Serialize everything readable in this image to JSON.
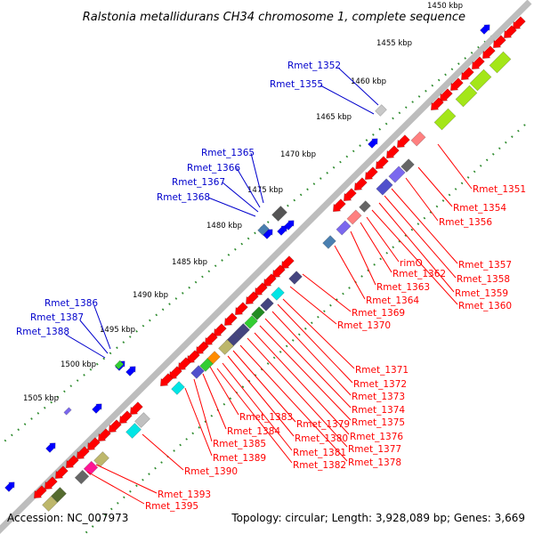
{
  "title": "Ralstonia metallidurans CH34 chromosome 1, complete sequence",
  "accession": "Accession: NC_007973",
  "summary": "Topology: circular; Length: 3,928,089 bp; Genes: 3,669",
  "kbp_ticks": [
    "1450 kbp",
    "1455 kbp",
    "1460 kbp",
    "1465 kbp",
    "1470 kbp",
    "1475 kbp",
    "1480 kbp",
    "1485 kbp",
    "1490 kbp",
    "1495 kbp",
    "1500 kbp",
    "1505 kbp"
  ],
  "colors": {
    "backbone": "#8c8c8c",
    "gene_red": "#ff0000",
    "gene_blue": "#0000ff",
    "label_red": "#ff0000",
    "label_blue": "#0000cc",
    "dots": "#2e8b2e"
  },
  "labels_outer": [
    "Rmet_1352",
    "Rmet_1355",
    "Rmet_1365",
    "Rmet_1366",
    "Rmet_1367",
    "Rmet_1368",
    "Rmet_1386",
    "Rmet_1387",
    "Rmet_1388"
  ],
  "labels_inner": [
    "Rmet_1351",
    "Rmet_1354",
    "Rmet_1356",
    "Rmet_1357",
    "Rmet_1358",
    "Rmet_1359",
    "Rmet_1360",
    "rimO",
    "Rmet_1362",
    "Rmet_1363",
    "Rmet_1364",
    "Rmet_1369",
    "Rmet_1370",
    "Rmet_1371",
    "Rmet_1372",
    "Rmet_1373",
    "Rmet_1374",
    "Rmet_1375",
    "Rmet_1376",
    "Rmet_1377",
    "Rmet_1378",
    "Rmet_1379",
    "Rmet_1380",
    "Rmet_1381",
    "Rmet_1382",
    "Rmet_1383",
    "Rmet_1384",
    "Rmet_1385",
    "Rmet_1389",
    "Rmet_1390",
    "Rmet_1393",
    "Rmet_1395"
  ]
}
